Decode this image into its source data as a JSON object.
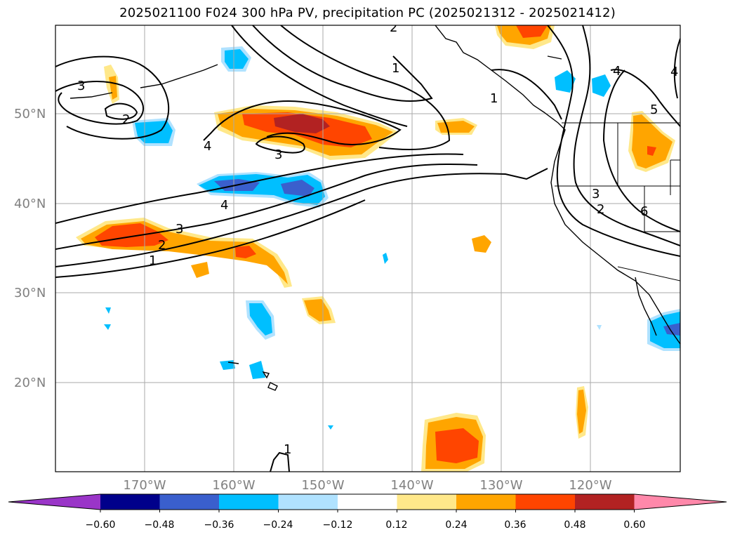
{
  "title": "2025021100 F024 300 hPa PV, precipitation PC (2025021312 - 2025021412)",
  "map": {
    "lon_labels": [
      "170°W",
      "160°W",
      "150°W",
      "140°W",
      "130°W",
      "120°W"
    ],
    "lat_labels": [
      "50°N",
      "40°N",
      "30°N",
      "20°N"
    ],
    "contour_labels": [
      "3",
      "2",
      "4",
      "3",
      "4",
      "3",
      "2",
      "1",
      "2",
      "1",
      "1",
      "4",
      "4",
      "5",
      "3",
      "2",
      "6",
      "1"
    ]
  },
  "colorbar": {
    "tick_labels": [
      "−0.60",
      "−0.48",
      "−0.36",
      "−0.24",
      "−0.12",
      "0.12",
      "0.24",
      "0.36",
      "0.48",
      "0.60"
    ],
    "colors": [
      "#9a35c8",
      "#00008b",
      "#3a5fcd",
      "#00bfff",
      "#b0e2ff",
      "#ffffff",
      "#ffe88a",
      "#ffa500",
      "#ff4500",
      "#b22222",
      "#ff88aa"
    ]
  }
}
